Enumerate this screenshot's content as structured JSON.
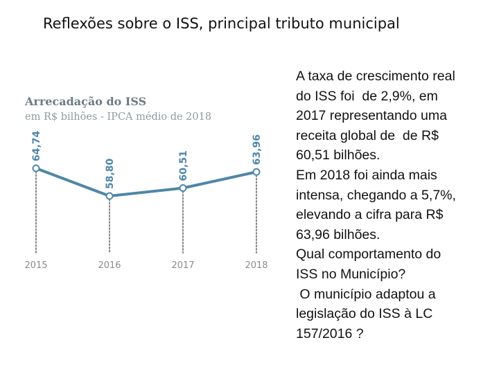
{
  "slide": {
    "title": "Reflexões sobre o ISS, principal tributo municipal"
  },
  "chart_data": {
    "type": "line",
    "title": "Arrecadação do ISS",
    "subtitle": "em R$ bilhões - IPCA médio de 2018",
    "categories": [
      "2015",
      "2016",
      "2017",
      "2018"
    ],
    "values": [
      64.74,
      58.8,
      60.51,
      63.96
    ],
    "data_labels": [
      "64,74",
      "58,80",
      "60,51",
      "63,96"
    ],
    "grid": false,
    "legend": "none",
    "colors": {
      "line": "#4f86a8",
      "drop_line": "#8a8a8a",
      "label": "#4f86a8",
      "axis_text": "#8a8a8a"
    }
  },
  "body": {
    "lines": [
      "A taxa de crescimento real",
      "do ISS foi  de 2,9%, em",
      "2017 representando uma",
      "receita global de  de R$",
      "60,51 bilhões.",
      "Em 2018 foi ainda mais",
      "intensa, chegando a 5,7%,",
      "elevando a cifra para R$",
      "63,96 bilhões.",
      "Qual comportamento do",
      "ISS no Município?",
      " O município adaptou a",
      "legislação do ISS à LC",
      "157/2016 ?"
    ]
  }
}
